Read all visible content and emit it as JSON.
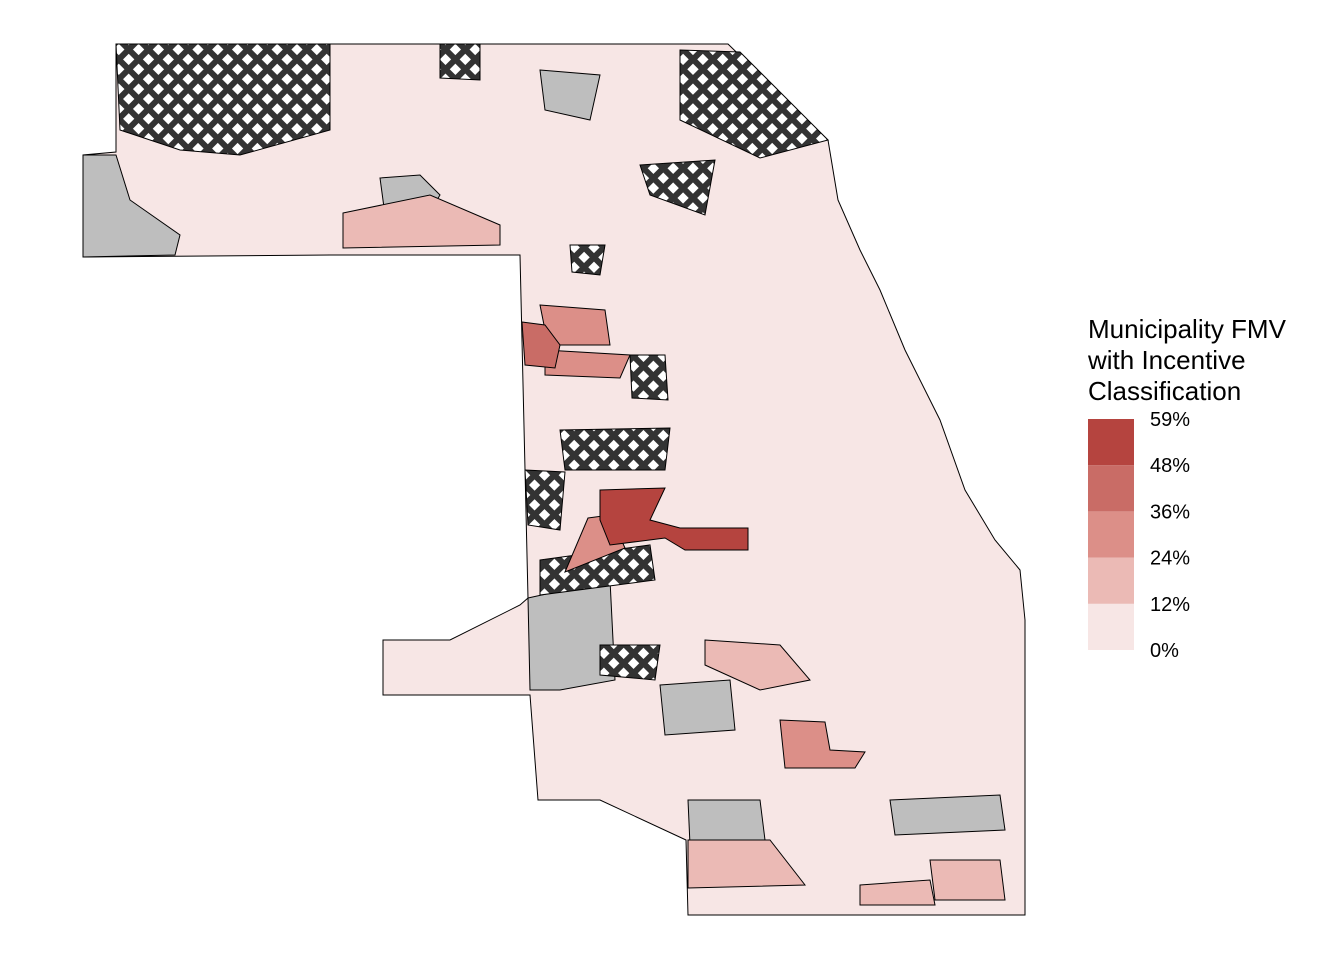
{
  "legend": {
    "title_lines": [
      "Municipality FMV",
      "with Incentive",
      "Classification"
    ],
    "breaks": [
      {
        "value": 0,
        "label": "0%"
      },
      {
        "value": 12,
        "label": "12%"
      },
      {
        "value": 24,
        "label": "24%"
      },
      {
        "value": 36,
        "label": "36%"
      },
      {
        "value": 48,
        "label": "48%"
      },
      {
        "value": 59,
        "label": "59%"
      }
    ],
    "colors": [
      "#f7e6e5",
      "#ebbab5",
      "#dc8f88",
      "#c96c66",
      "#b5443f"
    ]
  }
}
